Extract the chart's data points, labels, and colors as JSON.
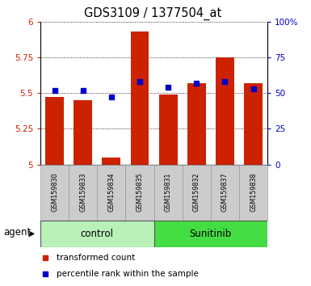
{
  "title": "GDS3109 / 1377504_at",
  "samples": [
    "GSM159830",
    "GSM159833",
    "GSM159834",
    "GSM159835",
    "GSM159831",
    "GSM159832",
    "GSM159837",
    "GSM159838"
  ],
  "bar_values": [
    5.47,
    5.45,
    5.05,
    5.93,
    5.49,
    5.57,
    5.75,
    5.57
  ],
  "percentile_values": [
    5.52,
    5.52,
    5.47,
    5.58,
    5.54,
    5.57,
    5.58,
    5.53
  ],
  "bar_bottom": 5.0,
  "ylim_left": [
    5.0,
    6.0
  ],
  "ylim_right": [
    0,
    100
  ],
  "yticks_left": [
    5.0,
    5.25,
    5.5,
    5.75,
    6.0
  ],
  "yticks_right": [
    0,
    25,
    50,
    75,
    100
  ],
  "ytick_labels_left": [
    "5",
    "5.25",
    "5.5",
    "5.75",
    "6"
  ],
  "ytick_labels_right": [
    "0",
    "25",
    "50",
    "75",
    "100%"
  ],
  "bar_color": "#cc2200",
  "percentile_color": "#0000cc",
  "bar_width": 0.65,
  "control_bg": "#b8f0b8",
  "sunitinib_bg": "#44dd44",
  "tick_label_color_left": "#cc2200",
  "tick_label_color_right": "#0000cc",
  "label_transformed": "transformed count",
  "label_percentile": "percentile rank within the sample",
  "group_label_control": "control",
  "group_label_sunitinib": "Sunitinib",
  "agent_label": "agent",
  "sample_box_color": "#cccccc",
  "sample_box_edge": "#999999"
}
